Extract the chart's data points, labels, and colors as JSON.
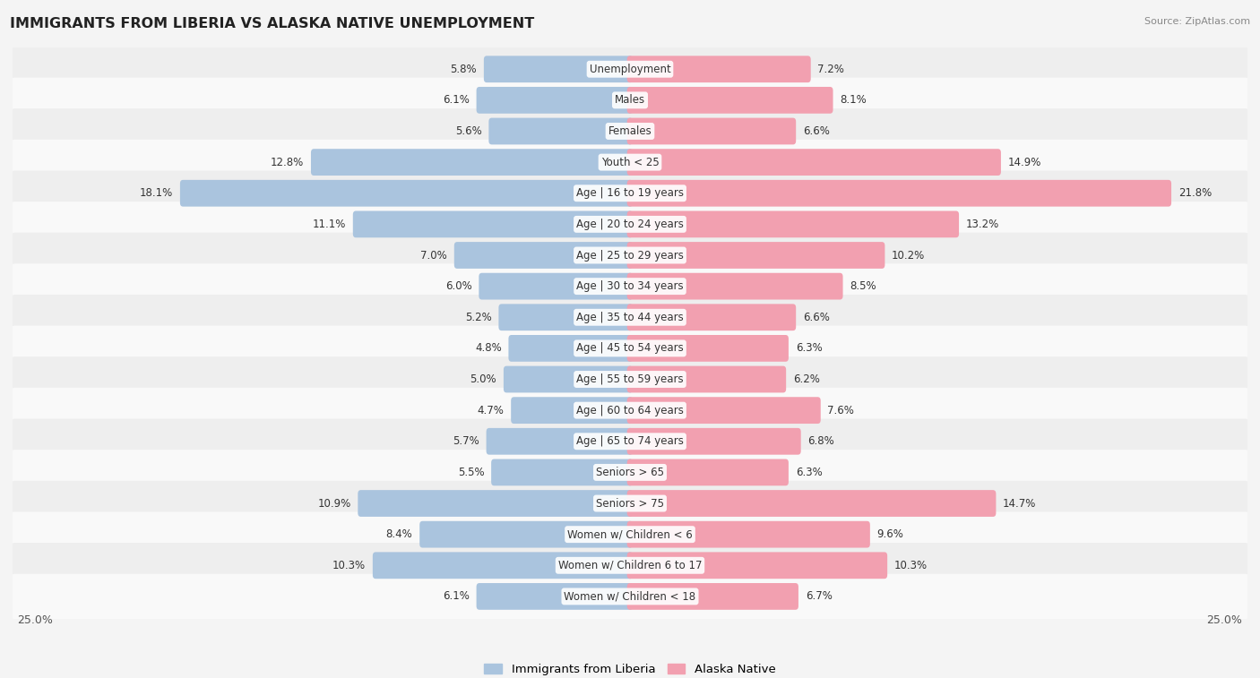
{
  "title": "IMMIGRANTS FROM LIBERIA VS ALASKA NATIVE UNEMPLOYMENT",
  "source": "Source: ZipAtlas.com",
  "categories": [
    "Unemployment",
    "Males",
    "Females",
    "Youth < 25",
    "Age | 16 to 19 years",
    "Age | 20 to 24 years",
    "Age | 25 to 29 years",
    "Age | 30 to 34 years",
    "Age | 35 to 44 years",
    "Age | 45 to 54 years",
    "Age | 55 to 59 years",
    "Age | 60 to 64 years",
    "Age | 65 to 74 years",
    "Seniors > 65",
    "Seniors > 75",
    "Women w/ Children < 6",
    "Women w/ Children 6 to 17",
    "Women w/ Children < 18"
  ],
  "liberia_values": [
    5.8,
    6.1,
    5.6,
    12.8,
    18.1,
    11.1,
    7.0,
    6.0,
    5.2,
    4.8,
    5.0,
    4.7,
    5.7,
    5.5,
    10.9,
    8.4,
    10.3,
    6.1
  ],
  "alaska_values": [
    7.2,
    8.1,
    6.6,
    14.9,
    21.8,
    13.2,
    10.2,
    8.5,
    6.6,
    6.3,
    6.2,
    7.6,
    6.8,
    6.3,
    14.7,
    9.6,
    10.3,
    6.7
  ],
  "liberia_color": "#aac4de",
  "alaska_color": "#f2a0b0",
  "x_max": 25.0,
  "legend_liberia": "Immigrants from Liberia",
  "legend_alaska": "Alaska Native",
  "bar_height": 0.62,
  "row_colors": [
    "#eeeeee",
    "#f9f9f9"
  ],
  "background_color": "#f4f4f4",
  "title_color": "#222222",
  "source_color": "#888888",
  "label_fontsize": 8.5,
  "value_fontsize": 8.5,
  "title_fontsize": 11.5
}
